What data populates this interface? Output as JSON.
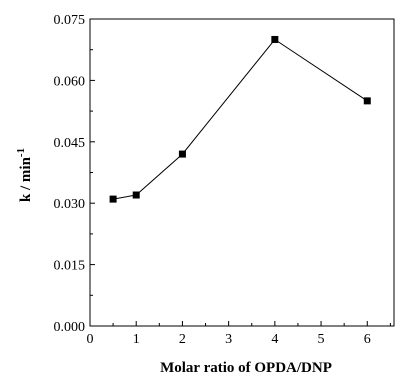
{
  "chart_data": {
    "type": "line",
    "title": "",
    "xlabel": "Molar ratio of OPDA/DNP",
    "ylabel": "k  / min",
    "ylabel_superscript": "-1",
    "xlim": [
      0,
      6.6
    ],
    "ylim": [
      0,
      0.075
    ],
    "x_ticks": [
      0,
      1,
      2,
      3,
      4,
      5,
      6
    ],
    "x_tick_labels": [
      "0",
      "1",
      "2",
      "3",
      "4",
      "5",
      "6"
    ],
    "y_ticks": [
      0,
      0.015,
      0.03,
      0.045,
      0.06,
      0.075
    ],
    "y_tick_labels": [
      "0.000",
      "0.015",
      "0.030",
      "0.045",
      "0.060",
      "0.075"
    ],
    "grid": false,
    "legend": "none",
    "series": [
      {
        "x": [
          0.5,
          1,
          2,
          4,
          6
        ],
        "y": [
          0.031,
          0.032,
          0.042,
          0.07,
          0.055
        ],
        "marker": "square",
        "color": "#000000"
      }
    ]
  }
}
